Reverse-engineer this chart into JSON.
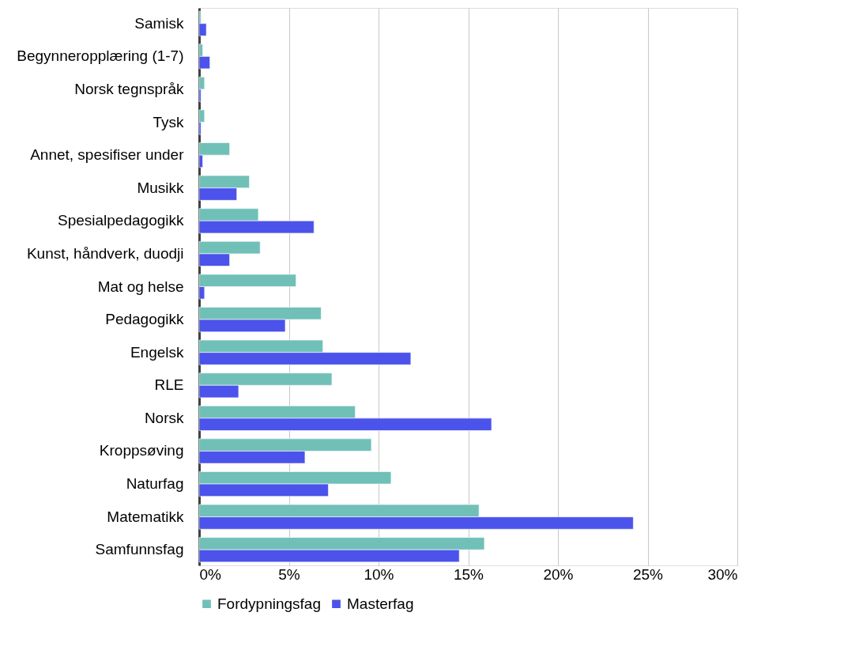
{
  "chart_data": {
    "type": "bar",
    "orientation": "horizontal",
    "categories": [
      "Samisk",
      "Begynneropplæring (1-7)",
      "Norsk tegnspråk",
      "Tysk",
      "Annet, spesifiser under",
      "Musikk",
      "Spesialpedagogikk",
      "Kunst, håndverk, duodji",
      "Mat og helse",
      "Pedagogikk",
      "Engelsk",
      "RLE",
      "Norsk",
      "Kroppsøving",
      "Naturfag",
      "Matematikk",
      "Samfunnsfag"
    ],
    "series": [
      {
        "name": "Fordypningsfag",
        "color": "#70c0b8",
        "values": [
          0.1,
          0.2,
          0.3,
          0.3,
          1.7,
          2.8,
          3.3,
          3.4,
          5.4,
          6.8,
          6.9,
          7.4,
          8.7,
          9.6,
          10.7,
          15.6,
          15.9
        ]
      },
      {
        "name": "Masterfag",
        "color": "#4b53eb",
        "values": [
          0.4,
          0.6,
          0.1,
          0.1,
          0.2,
          2.1,
          6.4,
          1.7,
          0.3,
          4.8,
          11.8,
          2.2,
          16.3,
          5.9,
          7.2,
          24.2,
          14.5
        ]
      }
    ],
    "xlim": [
      0,
      30
    ],
    "xticks": [
      {
        "value": 0,
        "label": "0%"
      },
      {
        "value": 5,
        "label": "5%"
      },
      {
        "value": 10,
        "label": "10%"
      },
      {
        "value": 15,
        "label": "15%"
      },
      {
        "value": 20,
        "label": "20%"
      },
      {
        "value": 25,
        "label": "25%"
      },
      {
        "value": 30,
        "label": "30%"
      }
    ],
    "grid": "x",
    "legend": "bottom"
  }
}
